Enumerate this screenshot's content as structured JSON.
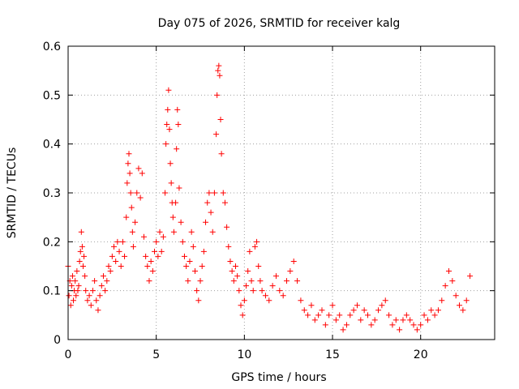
{
  "chart_data": {
    "type": "scatter",
    "title": "Day 075 of 2026, SRMTID for receiver kalg",
    "xlabel": "GPS time / hours",
    "ylabel": "SRMTID / TECUs",
    "xlim": [
      0,
      24.2
    ],
    "ylim": [
      0,
      0.6
    ],
    "x_ticks": [
      0,
      5,
      10,
      15,
      20
    ],
    "x_tick_labels": [
      "0",
      "5",
      "10",
      "15",
      "20"
    ],
    "y_ticks": [
      0,
      0.1,
      0.2,
      0.3,
      0.4,
      0.5,
      0.6
    ],
    "y_tick_labels": [
      "0",
      "0.1",
      "0.2",
      "0.3",
      "0.4",
      "0.5",
      "0.6"
    ],
    "grid": true,
    "marker": "plus",
    "color": "#ff0000",
    "series": [
      {
        "name": "SRMTID",
        "points": [
          [
            0.0,
            0.15
          ],
          [
            0.05,
            0.09
          ],
          [
            0.1,
            0.12
          ],
          [
            0.15,
            0.07
          ],
          [
            0.2,
            0.11
          ],
          [
            0.25,
            0.13
          ],
          [
            0.3,
            0.08
          ],
          [
            0.35,
            0.1
          ],
          [
            0.4,
            0.12
          ],
          [
            0.45,
            0.09
          ],
          [
            0.5,
            0.14
          ],
          [
            0.55,
            0.1
          ],
          [
            0.6,
            0.11
          ],
          [
            0.65,
            0.16
          ],
          [
            0.7,
            0.18
          ],
          [
            0.75,
            0.22
          ],
          [
            0.8,
            0.19
          ],
          [
            0.85,
            0.15
          ],
          [
            0.9,
            0.17
          ],
          [
            0.95,
            0.13
          ],
          [
            1.0,
            0.1
          ],
          [
            1.1,
            0.08
          ],
          [
            1.2,
            0.09
          ],
          [
            1.3,
            0.07
          ],
          [
            1.4,
            0.1
          ],
          [
            1.5,
            0.12
          ],
          [
            1.6,
            0.08
          ],
          [
            1.7,
            0.06
          ],
          [
            1.8,
            0.09
          ],
          [
            1.9,
            0.11
          ],
          [
            2.0,
            0.13
          ],
          [
            2.1,
            0.1
          ],
          [
            2.2,
            0.12
          ],
          [
            2.3,
            0.15
          ],
          [
            2.4,
            0.14
          ],
          [
            2.5,
            0.17
          ],
          [
            2.6,
            0.19
          ],
          [
            2.7,
            0.16
          ],
          [
            2.8,
            0.2
          ],
          [
            2.9,
            0.18
          ],
          [
            3.0,
            0.15
          ],
          [
            3.1,
            0.2
          ],
          [
            3.2,
            0.17
          ],
          [
            3.3,
            0.25
          ],
          [
            3.35,
            0.32
          ],
          [
            3.4,
            0.36
          ],
          [
            3.45,
            0.38
          ],
          [
            3.5,
            0.34
          ],
          [
            3.55,
            0.3
          ],
          [
            3.6,
            0.27
          ],
          [
            3.65,
            0.22
          ],
          [
            3.7,
            0.19
          ],
          [
            3.8,
            0.24
          ],
          [
            3.9,
            0.3
          ],
          [
            4.0,
            0.35
          ],
          [
            4.1,
            0.29
          ],
          [
            4.2,
            0.34
          ],
          [
            4.3,
            0.21
          ],
          [
            4.4,
            0.17
          ],
          [
            4.5,
            0.15
          ],
          [
            4.6,
            0.12
          ],
          [
            4.7,
            0.16
          ],
          [
            4.8,
            0.14
          ],
          [
            4.9,
            0.18
          ],
          [
            5.0,
            0.2
          ],
          [
            5.1,
            0.17
          ],
          [
            5.2,
            0.22
          ],
          [
            5.3,
            0.18
          ],
          [
            5.4,
            0.21
          ],
          [
            5.5,
            0.3
          ],
          [
            5.55,
            0.4
          ],
          [
            5.6,
            0.44
          ],
          [
            5.65,
            0.47
          ],
          [
            5.7,
            0.51
          ],
          [
            5.75,
            0.43
          ],
          [
            5.8,
            0.36
          ],
          [
            5.85,
            0.32
          ],
          [
            5.9,
            0.28
          ],
          [
            5.95,
            0.25
          ],
          [
            6.0,
            0.22
          ],
          [
            6.1,
            0.28
          ],
          [
            6.15,
            0.39
          ],
          [
            6.2,
            0.47
          ],
          [
            6.25,
            0.44
          ],
          [
            6.3,
            0.31
          ],
          [
            6.4,
            0.24
          ],
          [
            6.5,
            0.2
          ],
          [
            6.6,
            0.17
          ],
          [
            6.7,
            0.15
          ],
          [
            6.8,
            0.12
          ],
          [
            6.9,
            0.16
          ],
          [
            7.0,
            0.22
          ],
          [
            7.1,
            0.19
          ],
          [
            7.2,
            0.14
          ],
          [
            7.3,
            0.1
          ],
          [
            7.4,
            0.08
          ],
          [
            7.5,
            0.12
          ],
          [
            7.6,
            0.15
          ],
          [
            7.7,
            0.18
          ],
          [
            7.8,
            0.24
          ],
          [
            7.9,
            0.28
          ],
          [
            8.0,
            0.3
          ],
          [
            8.1,
            0.26
          ],
          [
            8.2,
            0.22
          ],
          [
            8.3,
            0.3
          ],
          [
            8.4,
            0.42
          ],
          [
            8.45,
            0.5
          ],
          [
            8.5,
            0.55
          ],
          [
            8.55,
            0.56
          ],
          [
            8.6,
            0.54
          ],
          [
            8.65,
            0.45
          ],
          [
            8.7,
            0.38
          ],
          [
            8.8,
            0.3
          ],
          [
            8.9,
            0.28
          ],
          [
            9.0,
            0.23
          ],
          [
            9.1,
            0.19
          ],
          [
            9.2,
            0.16
          ],
          [
            9.3,
            0.14
          ],
          [
            9.4,
            0.12
          ],
          [
            9.5,
            0.15
          ],
          [
            9.6,
            0.13
          ],
          [
            9.7,
            0.1
          ],
          [
            9.8,
            0.07
          ],
          [
            9.9,
            0.05
          ],
          [
            10.0,
            0.08
          ],
          [
            10.1,
            0.11
          ],
          [
            10.2,
            0.14
          ],
          [
            10.3,
            0.18
          ],
          [
            10.4,
            0.12
          ],
          [
            10.5,
            0.1
          ],
          [
            10.6,
            0.19
          ],
          [
            10.7,
            0.2
          ],
          [
            10.8,
            0.15
          ],
          [
            10.9,
            0.12
          ],
          [
            11.0,
            0.1
          ],
          [
            11.2,
            0.09
          ],
          [
            11.4,
            0.08
          ],
          [
            11.6,
            0.11
          ],
          [
            11.8,
            0.13
          ],
          [
            12.0,
            0.1
          ],
          [
            12.2,
            0.09
          ],
          [
            12.4,
            0.12
          ],
          [
            12.6,
            0.14
          ],
          [
            12.8,
            0.16
          ],
          [
            13.0,
            0.12
          ],
          [
            13.2,
            0.08
          ],
          [
            13.4,
            0.06
          ],
          [
            13.6,
            0.05
          ],
          [
            13.8,
            0.07
          ],
          [
            14.0,
            0.04
          ],
          [
            14.2,
            0.05
          ],
          [
            14.4,
            0.06
          ],
          [
            14.6,
            0.03
          ],
          [
            14.8,
            0.05
          ],
          [
            15.0,
            0.07
          ],
          [
            15.2,
            0.04
          ],
          [
            15.4,
            0.05
          ],
          [
            15.6,
            0.02
          ],
          [
            15.8,
            0.03
          ],
          [
            16.0,
            0.05
          ],
          [
            16.2,
            0.06
          ],
          [
            16.4,
            0.07
          ],
          [
            16.6,
            0.04
          ],
          [
            16.8,
            0.06
          ],
          [
            17.0,
            0.05
          ],
          [
            17.2,
            0.03
          ],
          [
            17.4,
            0.04
          ],
          [
            17.6,
            0.06
          ],
          [
            17.8,
            0.07
          ],
          [
            18.0,
            0.08
          ],
          [
            18.2,
            0.05
          ],
          [
            18.4,
            0.03
          ],
          [
            18.6,
            0.04
          ],
          [
            18.8,
            0.02
          ],
          [
            19.0,
            0.04
          ],
          [
            19.2,
            0.05
          ],
          [
            19.4,
            0.04
          ],
          [
            19.6,
            0.03
          ],
          [
            19.8,
            0.02
          ],
          [
            20.0,
            0.03
          ],
          [
            20.2,
            0.05
          ],
          [
            20.4,
            0.04
          ],
          [
            20.6,
            0.06
          ],
          [
            20.8,
            0.05
          ],
          [
            21.0,
            0.06
          ],
          [
            21.2,
            0.08
          ],
          [
            21.4,
            0.11
          ],
          [
            21.6,
            0.14
          ],
          [
            21.8,
            0.12
          ],
          [
            22.0,
            0.09
          ],
          [
            22.2,
            0.07
          ],
          [
            22.4,
            0.06
          ],
          [
            22.6,
            0.08
          ],
          [
            22.8,
            0.13
          ]
        ]
      }
    ]
  }
}
